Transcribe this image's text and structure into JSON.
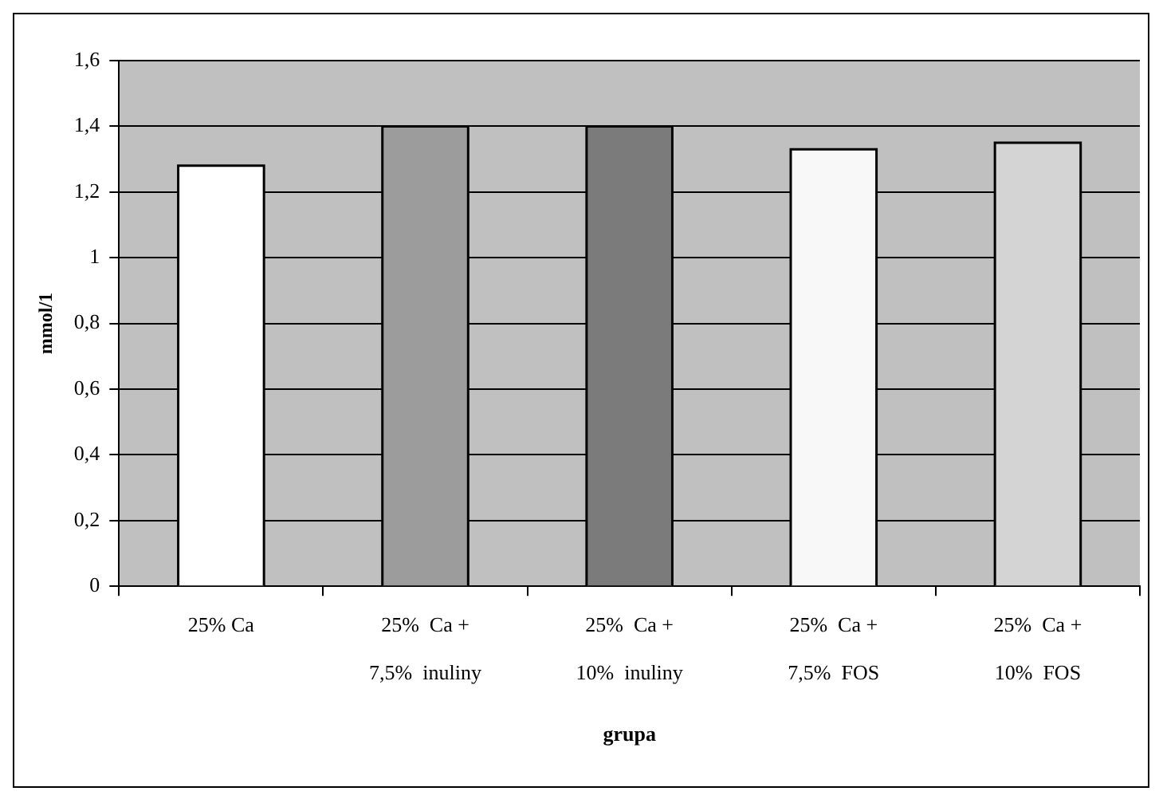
{
  "chart_data": {
    "type": "bar",
    "xlabel": "grupa",
    "ylabel": "mmol/1",
    "categories": [
      "25% Ca",
      "25%  Ca +\n7,5%  inuliny",
      "25%  Ca +\n10%  inuliny",
      "25%  Ca +\n7,5%  FOS",
      "25%  Ca +\n10%  FOS"
    ],
    "values": [
      1.28,
      1.4,
      1.4,
      1.33,
      1.35
    ],
    "colors": [
      "#ffffff",
      "#9c9c9c",
      "#7b7b7b",
      "#f8f8f8",
      "#d4d4d4"
    ],
    "ylim": [
      0,
      1.6
    ],
    "yticks": [
      0,
      {
        "value": 0.2,
        "label": "0,2"
      },
      {
        "value": 0.4,
        "label": "0,4"
      },
      {
        "value": 0.6,
        "label": "0,6"
      },
      {
        "value": 0.8,
        "label": "0,8"
      },
      1,
      {
        "value": 1.2,
        "label": "1,2"
      },
      {
        "value": 1.4,
        "label": "1,4"
      },
      {
        "value": 1.6,
        "label": "1,6"
      }
    ],
    "grid": "y",
    "legend": false
  }
}
